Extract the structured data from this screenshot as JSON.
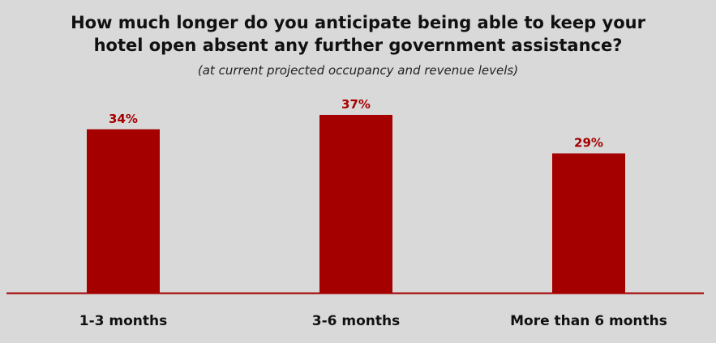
{
  "chart_data": {
    "type": "bar",
    "title_line1": "How much longer do you anticipate being able to keep your",
    "title_line2": "hotel open absent any further government assistance?",
    "subtitle": "(at current projected occupancy and revenue levels)",
    "categories": [
      "1-3 months",
      "3-6 months",
      "More than 6 months"
    ],
    "values": [
      34,
      37,
      29
    ],
    "value_labels": [
      "34%",
      "37%",
      "29%"
    ],
    "xlabel": "",
    "ylabel": "",
    "ylim": [
      0,
      37
    ],
    "grid": false,
    "legend": "none",
    "bar_color": "#a50000",
    "label_color": "#a50000",
    "axis_color": "#a50000"
  }
}
